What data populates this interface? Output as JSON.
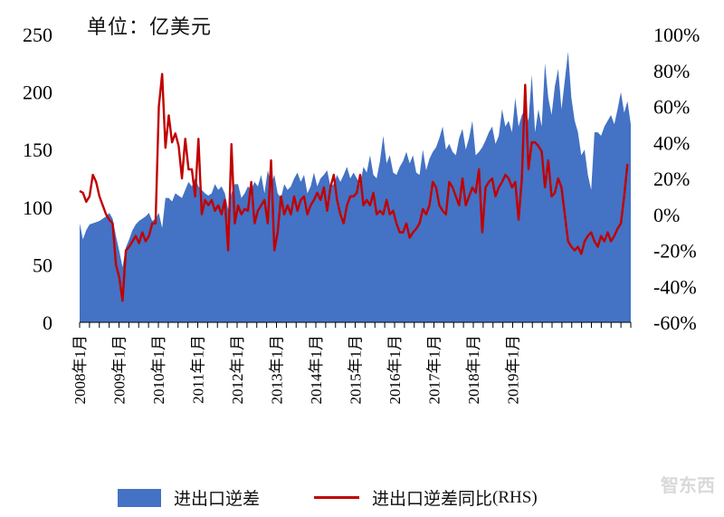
{
  "unit_label": "单位：亿美元",
  "colors": {
    "area": "#4472C4",
    "line": "#C00000",
    "axis": "#000000"
  },
  "legend": {
    "area_label": "进出口逆差",
    "line_label_main": "进出口逆差同比",
    "line_label_suffix": "(RHS)"
  },
  "watermark": "智东西",
  "chart_data": {
    "type": "area+line",
    "title": "",
    "x_tick_labels": [
      "2008年1月",
      "2009年1月",
      "2010年1月",
      "2011年1月",
      "2012年1月",
      "2013年1月",
      "2014年1月",
      "2015年1月",
      "2016年1月",
      "2017年1月",
      "2018年1月",
      "2019年1月"
    ],
    "left_axis": {
      "ticks": [
        0,
        50,
        100,
        150,
        200,
        250
      ],
      "range": [
        0,
        250
      ]
    },
    "right_axis": {
      "ticks": [
        "-60%",
        "-40%",
        "-20%",
        "0%",
        "20%",
        "40%",
        "60%",
        "80%",
        "100%"
      ],
      "range": [
        -60,
        100
      ]
    },
    "x_start": "2008-01",
    "x_end": "2019-12",
    "series": [
      {
        "name": "进出口逆差",
        "axis": "left",
        "values": [
          86,
          72,
          80,
          85,
          86,
          87,
          88,
          90,
          92,
          95,
          90,
          75,
          62,
          48,
          65,
          72,
          80,
          85,
          88,
          90,
          92,
          95,
          88,
          90,
          95,
          82,
          108,
          108,
          105,
          112,
          110,
          108,
          115,
          122,
          118,
          125,
          118,
          115,
          112,
          110,
          112,
          120,
          115,
          118,
          112,
          98,
          112,
          120,
          120,
          108,
          112,
          118,
          115,
          122,
          118,
          128,
          112,
          132,
          120,
          128,
          112,
          108,
          120,
          115,
          118,
          125,
          130,
          122,
          128,
          112,
          118,
          130,
          118,
          125,
          128,
          132,
          118,
          120,
          128,
          122,
          128,
          135,
          125,
          130,
          125,
          120,
          135,
          130,
          145,
          128,
          125,
          140,
          162,
          138,
          145,
          130,
          128,
          135,
          140,
          148,
          138,
          145,
          130,
          128,
          150,
          132,
          142,
          148,
          152,
          160,
          170,
          150,
          155,
          148,
          145,
          160,
          168,
          150,
          160,
          175,
          145,
          148,
          152,
          158,
          165,
          170,
          155,
          162,
          185,
          170,
          175,
          165,
          195,
          170,
          180,
          185,
          175,
          215,
          165,
          185,
          170,
          225,
          195,
          180,
          205,
          220,
          185,
          210,
          235,
          195,
          175,
          165,
          145,
          150,
          128,
          115,
          165,
          165,
          162,
          170,
          175,
          180,
          172,
          185,
          200,
          182,
          192,
          172
        ]
      },
      {
        "name": "进出口逆差同比",
        "axis": "right",
        "values": [
          13,
          12,
          7,
          10,
          22,
          18,
          10,
          5,
          0,
          -3,
          -5,
          -28,
          -35,
          -48,
          -20,
          -18,
          -15,
          -12,
          -16,
          -10,
          -15,
          -12,
          -5,
          -5,
          60,
          78,
          37,
          55,
          40,
          45,
          38,
          20,
          42,
          25,
          25,
          10,
          42,
          0,
          8,
          5,
          8,
          2,
          5,
          0,
          8,
          -20,
          39,
          -5,
          5,
          0,
          3,
          2,
          18,
          -5,
          2,
          5,
          8,
          -5,
          30,
          -20,
          -10,
          10,
          0,
          5,
          0,
          10,
          2,
          8,
          10,
          0,
          5,
          8,
          12,
          8,
          15,
          2,
          15,
          22,
          8,
          0,
          -5,
          5,
          10,
          10,
          12,
          22,
          5,
          8,
          5,
          12,
          0,
          2,
          0,
          8,
          0,
          2,
          -5,
          -10,
          -10,
          -5,
          -13,
          -10,
          -8,
          -5,
          3,
          0,
          5,
          18,
          15,
          5,
          2,
          0,
          18,
          15,
          10,
          5,
          20,
          5,
          10,
          15,
          12,
          25,
          -10,
          15,
          18,
          20,
          10,
          15,
          18,
          22,
          20,
          15,
          18,
          -3,
          20,
          72,
          25,
          40,
          40,
          38,
          35,
          15,
          30,
          10,
          12,
          20,
          15,
          0,
          -15,
          -18,
          -20,
          -18,
          -22,
          -15,
          -12,
          -10,
          -15,
          -18,
          -12,
          -15,
          -10,
          -15,
          -12,
          -8,
          -5,
          10,
          28
        ]
      }
    ]
  }
}
